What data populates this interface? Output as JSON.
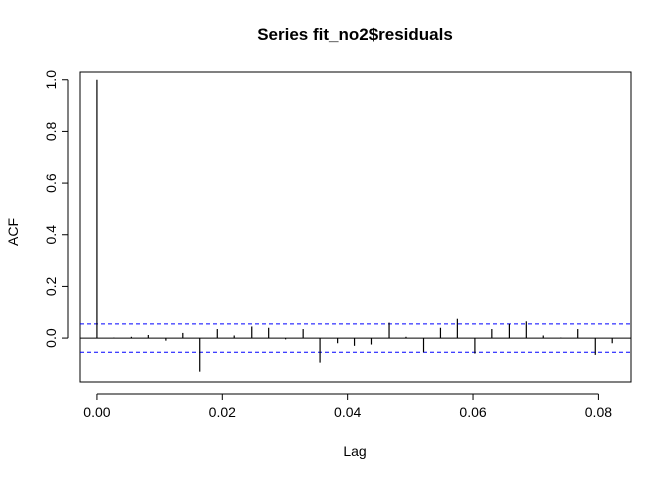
{
  "chart_data": {
    "type": "bar",
    "title": "Series  fit_no2$residuals",
    "xlabel": "Lag",
    "ylabel": "ACF",
    "xlim": [
      -0.0027,
      0.0852
    ],
    "ylim": [
      -0.17,
      1.03
    ],
    "x_ticks": [
      {
        "value": 0.0,
        "label": "0.00"
      },
      {
        "value": 0.02,
        "label": "0.02"
      },
      {
        "value": 0.04,
        "label": "0.04"
      },
      {
        "value": 0.06,
        "label": "0.06"
      },
      {
        "value": 0.08,
        "label": "0.08"
      }
    ],
    "y_ticks": [
      {
        "value": 0.0,
        "label": "0.0"
      },
      {
        "value": 0.2,
        "label": "0.2"
      },
      {
        "value": 0.4,
        "label": "0.4"
      },
      {
        "value": 0.6,
        "label": "0.6"
      },
      {
        "value": 0.8,
        "label": "0.8"
      },
      {
        "value": 1.0,
        "label": "1.0"
      }
    ],
    "confidence_bound": 0.055,
    "colors": {
      "spikes": "#000000",
      "zero_line": "#000000",
      "confidence": "#0000ff",
      "frame": "#000000"
    },
    "lags": [
      0.0,
      0.0027,
      0.0055,
      0.0082,
      0.011,
      0.0137,
      0.0164,
      0.0192,
      0.0219,
      0.0247,
      0.0274,
      0.0301,
      0.0329,
      0.0356,
      0.0384,
      0.0411,
      0.0438,
      0.0466,
      0.0493,
      0.0521,
      0.0548,
      0.0575,
      0.0603,
      0.063,
      0.0658,
      0.0685,
      0.0712,
      0.074,
      0.0767,
      0.0795,
      0.0822
    ],
    "acf": [
      1.0,
      0.002,
      0.005,
      0.012,
      -0.01,
      0.02,
      -0.13,
      0.035,
      0.01,
      0.045,
      0.04,
      -0.005,
      0.035,
      -0.095,
      -0.02,
      -0.03,
      -0.025,
      0.06,
      0.005,
      -0.055,
      0.04,
      0.075,
      -0.06,
      0.035,
      0.055,
      0.065,
      0.01,
      0.002,
      0.035,
      -0.065,
      -0.02
    ]
  }
}
